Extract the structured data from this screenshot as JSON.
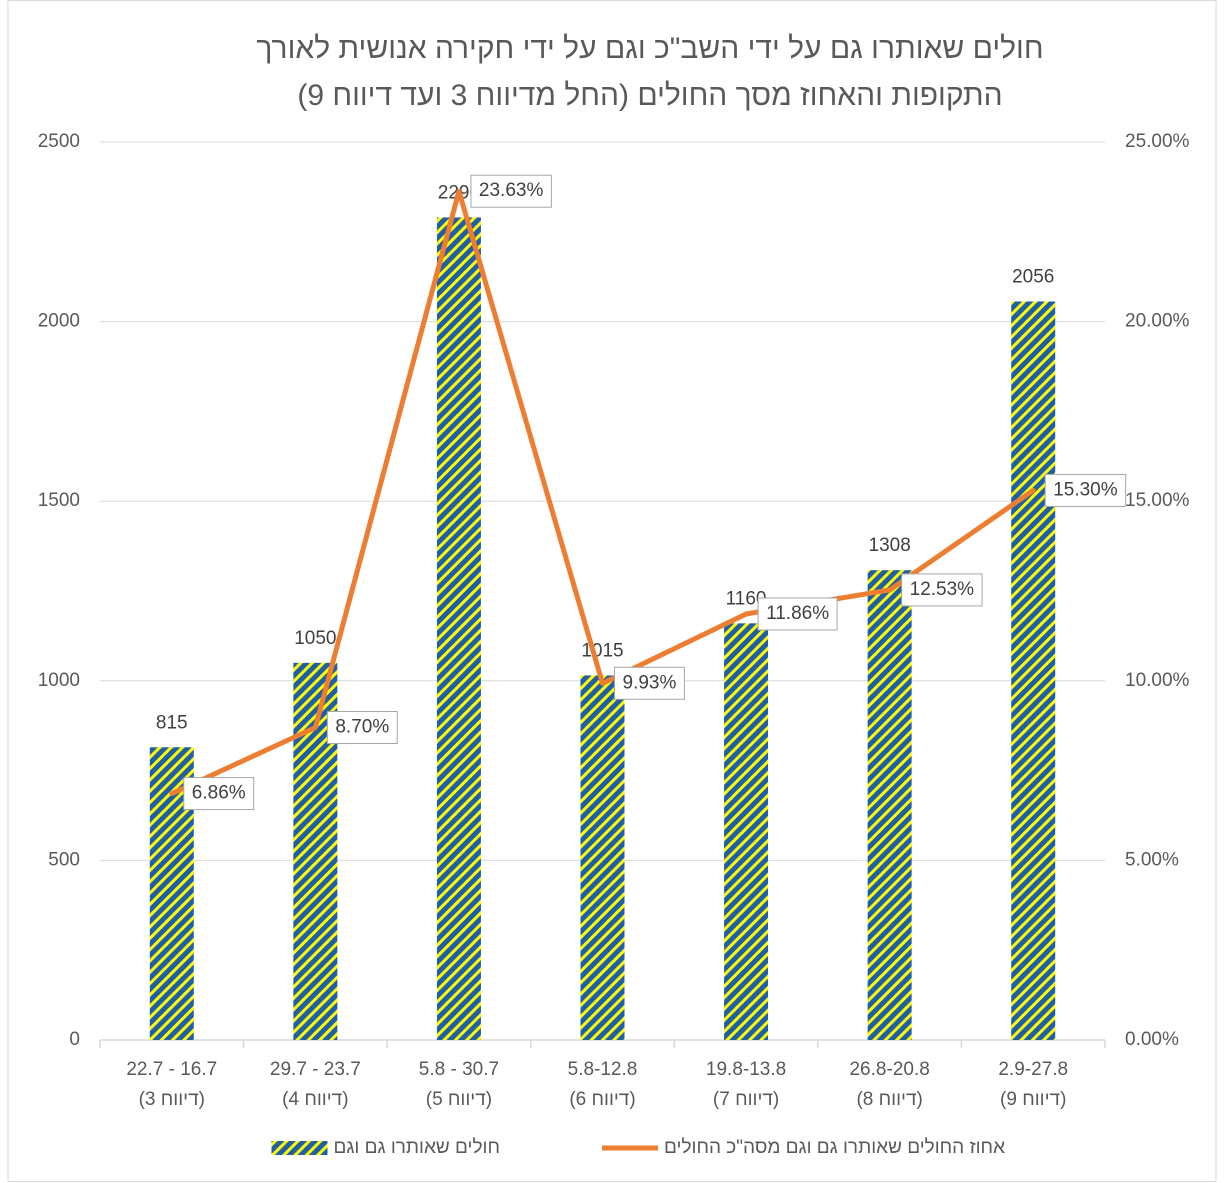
{
  "chart_data": {
    "type": "bar-line",
    "title": [
      "חולים שאותרו גם על ידי השב\"כ וגם על ידי חקירה אנושית לאורך",
      "התקופות והאחוז מסך החולים (החל מדיווח 3 ועד דיווח 9)"
    ],
    "categories": [
      [
        "22.7 - 16.7",
        "(דיווח 3)"
      ],
      [
        "29.7 - 23.7",
        "(דיווח 4)"
      ],
      [
        "5.8 - 30.7",
        "(דיווח 5)"
      ],
      [
        "5.8-12.8",
        "(דיווח 6)"
      ],
      [
        "19.8-13.8",
        "(דיווח 7)"
      ],
      [
        "26.8-20.8",
        "(דיווח 8)"
      ],
      [
        "2.9-27.8",
        "(דיווח 9)"
      ]
    ],
    "series": [
      {
        "name": "חולים שאותרו גם וגם",
        "type": "bar",
        "color": "#1f5fa8",
        "stripe_color": "#ffff00",
        "values": [
          815,
          1050,
          2290,
          1015,
          1160,
          1308,
          2056
        ]
      },
      {
        "name": "אחוז החולים שאותרו גם וגם מסה\"כ החולים",
        "type": "line",
        "color": "#ed7d31",
        "axis": "y2",
        "values": [
          6.86,
          8.7,
          23.63,
          9.93,
          11.86,
          12.53,
          15.3
        ],
        "value_labels": [
          "6.86%",
          "8.70%",
          "23.63%",
          "9.93%",
          "11.86%",
          "12.53%",
          "15.30%"
        ]
      }
    ],
    "ylim": [
      0,
      2500
    ],
    "yticks": [
      0,
      500,
      1000,
      1500,
      2000,
      2500
    ],
    "y2lim": [
      0,
      25
    ],
    "y2ticks": [
      {
        "value": 0,
        "label": "0.00%"
      },
      {
        "value": 5,
        "label": "5.00%"
      },
      {
        "value": 10,
        "label": "10.00%"
      },
      {
        "value": 15,
        "label": "15.00%"
      },
      {
        "value": 20,
        "label": "20.00%"
      },
      {
        "value": 25,
        "label": "25.00%"
      }
    ],
    "grid": true
  }
}
